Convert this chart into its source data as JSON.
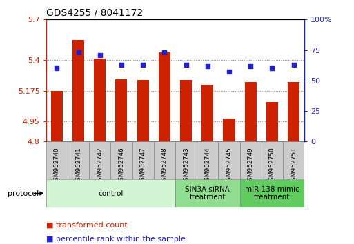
{
  "title": "GDS4255 / 8041172",
  "samples": [
    "GSM952740",
    "GSM952741",
    "GSM952742",
    "GSM952746",
    "GSM952747",
    "GSM952748",
    "GSM952743",
    "GSM952744",
    "GSM952745",
    "GSM952749",
    "GSM952750",
    "GSM952751"
  ],
  "red_values": [
    5.175,
    5.55,
    5.41,
    5.26,
    5.255,
    5.46,
    5.255,
    5.22,
    4.97,
    5.24,
    5.09,
    5.24
  ],
  "blue_values": [
    60,
    73,
    71,
    63,
    63,
    73,
    63,
    62,
    57,
    62,
    60,
    63
  ],
  "y_min": 4.8,
  "y_max": 5.7,
  "y_ticks_left": [
    4.8,
    4.95,
    5.175,
    5.4,
    5.7
  ],
  "y_ticks_left_labels": [
    "4.8",
    "4.95",
    "5.175",
    "5.4",
    "5.7"
  ],
  "y_ticks_right": [
    0,
    25,
    50,
    75,
    100
  ],
  "y_ticks_right_labels": [
    "0",
    "25",
    "50",
    "75",
    "100%"
  ],
  "bar_color": "#cc2200",
  "dot_color": "#2222cc",
  "left_axis_color": "#cc2200",
  "right_axis_color": "#2222cc",
  "group_labels": [
    "control",
    "SIN3A siRNA\ntreatment",
    "miR-138 mimic\ntreatment"
  ],
  "group_ranges": [
    [
      0,
      5
    ],
    [
      6,
      8
    ],
    [
      9,
      11
    ]
  ],
  "group_colors": [
    "#d4f5d4",
    "#90dd90",
    "#60cc60"
  ],
  "protocol_label": "protocol",
  "legend_red": "transformed count",
  "legend_blue": "percentile rank within the sample"
}
